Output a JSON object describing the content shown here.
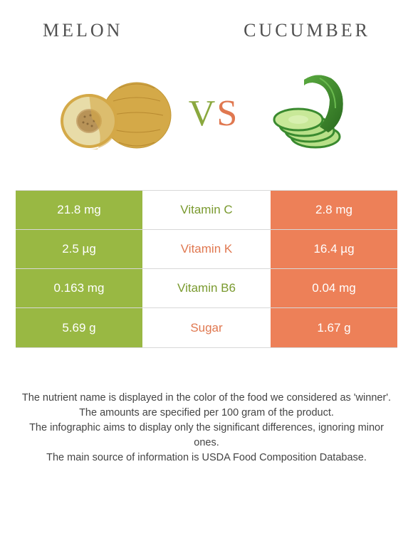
{
  "header": {
    "left_title": "MELON",
    "right_title": "CUCUMBER"
  },
  "vs": {
    "v": "V",
    "s": "S"
  },
  "colors": {
    "melon": "#99b843",
    "cucumber": "#ed8058",
    "melon_skin": "#d4a948",
    "melon_flesh": "#e8dca8",
    "cuc_skin": "#3a8a2f",
    "cuc_flesh": "#b8e088"
  },
  "rows": [
    {
      "left": "21.8 mg",
      "mid": "Vitamin C",
      "right": "2.8 mg",
      "mid_color": "#7a9a2f"
    },
    {
      "left": "2.5 µg",
      "mid": "Vitamin K",
      "right": "16.4 µg",
      "mid_color": "#e07850"
    },
    {
      "left": "0.163 mg",
      "mid": "Vitamin B6",
      "right": "0.04 mg",
      "mid_color": "#7a9a2f"
    },
    {
      "left": "5.69 g",
      "mid": "Sugar",
      "right": "1.67 g",
      "mid_color": "#e07850"
    }
  ],
  "footer": {
    "line1": "The nutrient name is displayed in the color of the food we considered as 'winner'.",
    "line2": "The amounts are specified per 100 gram of the product.",
    "line3": "The infographic aims to display only the significant differences, ignoring minor ones.",
    "line4": "The main source of information is USDA Food Composition Database."
  }
}
